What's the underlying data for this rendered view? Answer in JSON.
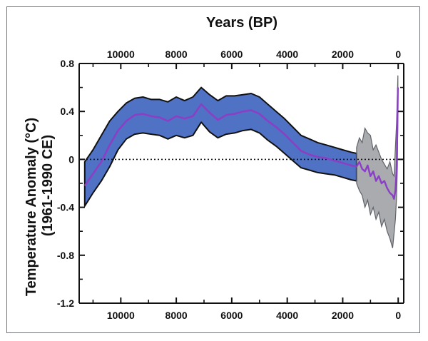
{
  "chart_data": {
    "type": "area",
    "title": "",
    "xlabel": "Years (BP)",
    "ylabel": "Temperature Anomaly (°C)",
    "ylabel_sub": "(1961-1990 CE)",
    "x_reversed": true,
    "xlim": [
      11500,
      -200
    ],
    "ylim": [
      -1.2,
      0.8
    ],
    "xticks": [
      10000,
      8000,
      6000,
      4000,
      2000,
      0
    ],
    "xtick_labels": [
      "10000",
      "8000",
      "6000",
      "4000",
      "2000",
      "0"
    ],
    "yticks": [
      0.8,
      0.4,
      0,
      -0.4,
      -0.8,
      -1.2
    ],
    "ytick_labels": [
      "0.8",
      "0.4",
      "0",
      "-0.4",
      "-0.8",
      "-1.2"
    ],
    "zero_line": "dotted",
    "grid": false,
    "legend": "none",
    "colors": {
      "band_fill": "#4f72c4",
      "band_outline": "#111111",
      "mean_line": "#8a3fc4",
      "recent_band": "#8c8f94",
      "recent_outline": "#5f6268",
      "frame": "#6f7278"
    },
    "series": [
      {
        "role": "holocene-mean",
        "x": [
          11300,
          11000,
          10700,
          10400,
          10100,
          9800,
          9500,
          9200,
          8900,
          8600,
          8300,
          8000,
          7700,
          7400,
          7100,
          6800,
          6500,
          6200,
          5900,
          5600,
          5300,
          5000,
          4700,
          4400,
          4100,
          3800,
          3500,
          3200,
          2900,
          2600,
          2300,
          2000,
          1700,
          1500
        ],
        "y": [
          -0.22,
          -0.12,
          -0.02,
          0.12,
          0.24,
          0.32,
          0.37,
          0.38,
          0.36,
          0.35,
          0.32,
          0.36,
          0.34,
          0.36,
          0.46,
          0.39,
          0.33,
          0.37,
          0.38,
          0.4,
          0.41,
          0.38,
          0.32,
          0.27,
          0.21,
          0.14,
          0.07,
          0.04,
          0.02,
          0.01,
          -0.01,
          -0.03,
          -0.05,
          -0.06
        ]
      },
      {
        "role": "holocene-upper",
        "x": [
          11300,
          11000,
          10700,
          10400,
          10100,
          9800,
          9500,
          9200,
          8900,
          8600,
          8300,
          8000,
          7700,
          7400,
          7100,
          6800,
          6500,
          6200,
          5900,
          5600,
          5300,
          5000,
          4700,
          4400,
          4100,
          3800,
          3500,
          3200,
          2900,
          2600,
          2300,
          2000,
          1700,
          1500
        ],
        "y": [
          -0.02,
          0.08,
          0.2,
          0.32,
          0.4,
          0.47,
          0.51,
          0.52,
          0.5,
          0.5,
          0.48,
          0.52,
          0.49,
          0.52,
          0.6,
          0.54,
          0.49,
          0.53,
          0.53,
          0.54,
          0.55,
          0.52,
          0.46,
          0.4,
          0.34,
          0.27,
          0.2,
          0.17,
          0.14,
          0.12,
          0.1,
          0.08,
          0.06,
          0.05
        ]
      },
      {
        "role": "holocene-lower",
        "x": [
          11300,
          11000,
          10700,
          10400,
          10100,
          9800,
          9500,
          9200,
          8900,
          8600,
          8300,
          8000,
          7700,
          7400,
          7100,
          6800,
          6500,
          6200,
          5900,
          5600,
          5300,
          5000,
          4700,
          4400,
          4100,
          3800,
          3500,
          3200,
          2900,
          2600,
          2300,
          2000,
          1700,
          1500
        ],
        "y": [
          -0.39,
          -0.28,
          -0.18,
          -0.06,
          0.08,
          0.17,
          0.21,
          0.22,
          0.21,
          0.2,
          0.17,
          0.2,
          0.18,
          0.2,
          0.31,
          0.23,
          0.18,
          0.21,
          0.22,
          0.24,
          0.25,
          0.22,
          0.16,
          0.11,
          0.05,
          -0.01,
          -0.07,
          -0.09,
          -0.11,
          -0.12,
          -0.13,
          -0.15,
          -0.17,
          -0.18
        ]
      },
      {
        "role": "recent-mean",
        "x": [
          1500,
          1400,
          1300,
          1200,
          1100,
          1000,
          900,
          800,
          700,
          600,
          500,
          400,
          300,
          200,
          150,
          100,
          60,
          30,
          10
        ],
        "y": [
          -0.06,
          -0.02,
          -0.08,
          -0.1,
          -0.05,
          -0.14,
          -0.1,
          -0.18,
          -0.14,
          -0.2,
          -0.18,
          -0.24,
          -0.28,
          -0.3,
          -0.33,
          -0.26,
          -0.1,
          0.25,
          0.6
        ]
      },
      {
        "role": "recent-upper",
        "x": [
          1500,
          1400,
          1300,
          1200,
          1100,
          1000,
          900,
          800,
          700,
          600,
          500,
          400,
          300,
          200,
          150,
          100,
          60,
          30,
          10
        ],
        "y": [
          0.1,
          0.18,
          0.14,
          0.26,
          0.22,
          0.2,
          0.08,
          0.12,
          0.06,
          0.0,
          -0.04,
          -0.08,
          -0.02,
          -0.12,
          -0.14,
          0.1,
          0.3,
          0.55,
          0.7
        ]
      },
      {
        "role": "recent-lower",
        "x": [
          1500,
          1400,
          1300,
          1200,
          1100,
          1000,
          900,
          800,
          700,
          600,
          500,
          400,
          300,
          200,
          150,
          100,
          60,
          30,
          10
        ],
        "y": [
          -0.2,
          -0.26,
          -0.3,
          -0.4,
          -0.34,
          -0.46,
          -0.4,
          -0.5,
          -0.44,
          -0.56,
          -0.5,
          -0.6,
          -0.66,
          -0.74,
          -0.62,
          -0.5,
          -0.32,
          -0.05,
          0.42
        ]
      }
    ]
  }
}
